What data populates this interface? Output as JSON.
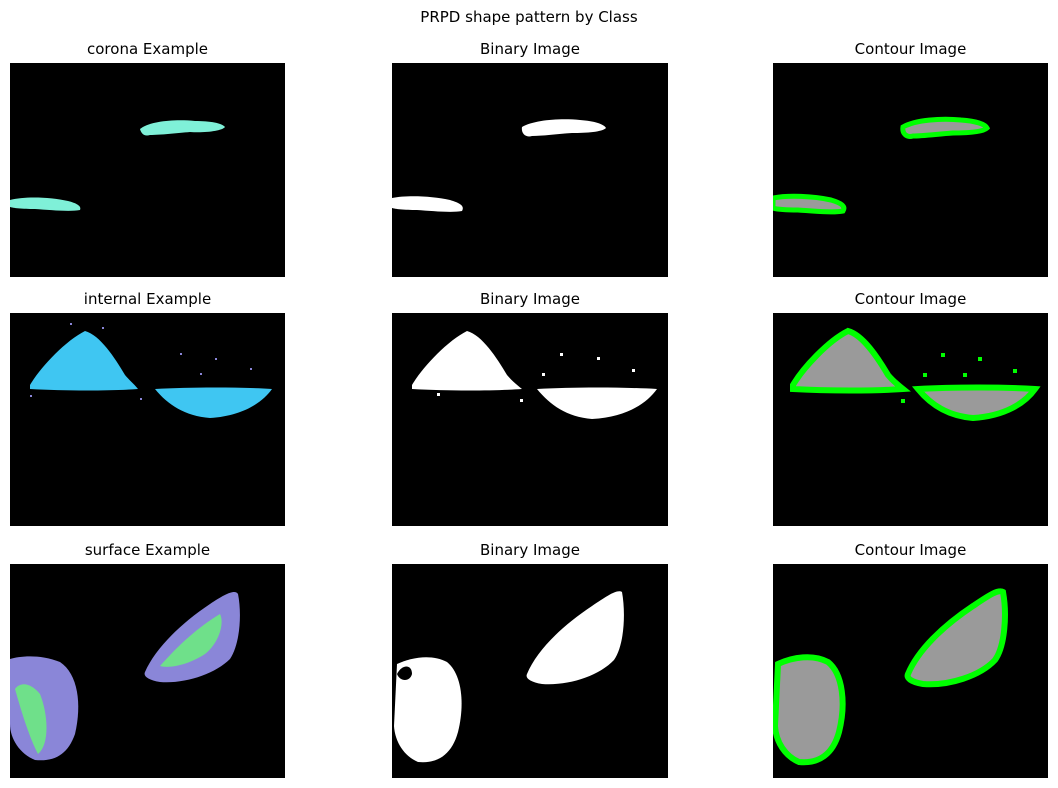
{
  "figure": {
    "title": "PRPD shape pattern by Class",
    "rows": [
      {
        "class_name": "corona",
        "titles": [
          "corona Example",
          "Binary Image",
          "Contour Image"
        ]
      },
      {
        "class_name": "internal",
        "titles": [
          "internal Example",
          "Binary Image",
          "Contour Image"
        ]
      },
      {
        "class_name": "surface",
        "titles": [
          "surface Example",
          "Binary Image",
          "Contour Image"
        ]
      }
    ]
  },
  "colors": {
    "background": "#000000",
    "binary_fill": "#ffffff",
    "contour": "#00ff00",
    "corona_fill": "#7ff0d8",
    "internal_fill": "#3fc6f2",
    "surface_fill": "#8a86d8",
    "surface_hot": "#6fe08a",
    "contour_body": "#9a9a9a"
  }
}
